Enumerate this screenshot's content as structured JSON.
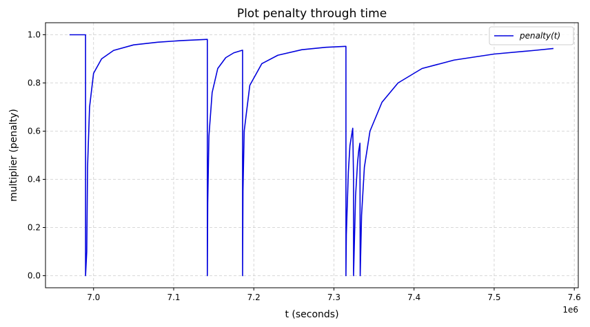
{
  "chart_data": {
    "type": "line",
    "title": "Plot penalty through time",
    "xlabel": "t (seconds)",
    "ylabel": "multiplier (penalty)",
    "x_offset_label": "1e6",
    "xlim": [
      6.94,
      7.605
    ],
    "ylim": [
      -0.05,
      1.05
    ],
    "x_ticks": [
      7.0,
      7.1,
      7.2,
      7.3,
      7.4,
      7.5,
      7.6
    ],
    "x_tick_labels": [
      "7.0",
      "7.1",
      "7.2",
      "7.3",
      "7.4",
      "7.5",
      "7.6"
    ],
    "y_ticks": [
      0.0,
      0.2,
      0.4,
      0.6,
      0.8,
      1.0
    ],
    "y_tick_labels": [
      "0.0",
      "0.2",
      "0.4",
      "0.6",
      "0.8",
      "1.0"
    ],
    "grid": true,
    "legend_position": "top-right",
    "series": [
      {
        "name": "penalty(t)",
        "color": "#0000dd",
        "x": [
          6.97,
          6.99,
          6.99,
          6.9915,
          6.9925,
          6.995,
          7.0,
          7.01,
          7.025,
          7.05,
          7.08,
          7.11,
          7.142,
          7.142,
          7.1425,
          7.144,
          7.148,
          7.155,
          7.165,
          7.175,
          7.186,
          7.186,
          7.1865,
          7.188,
          7.195,
          7.21,
          7.23,
          7.26,
          7.29,
          7.315,
          7.315,
          7.3155,
          7.318,
          7.32,
          7.3235,
          7.3245,
          7.3245,
          7.327,
          7.3295,
          7.331,
          7.3325,
          7.3328,
          7.3345,
          7.338,
          7.345,
          7.36,
          7.38,
          7.41,
          7.45,
          7.5,
          7.55,
          7.574
        ],
        "y": [
          1.0,
          1.0,
          0.0,
          0.1,
          0.45,
          0.7,
          0.84,
          0.9,
          0.935,
          0.958,
          0.969,
          0.976,
          0.981,
          0.0,
          0.3,
          0.58,
          0.76,
          0.86,
          0.905,
          0.925,
          0.936,
          0.0,
          0.35,
          0.6,
          0.79,
          0.88,
          0.915,
          0.938,
          0.948,
          0.952,
          0.0,
          0.17,
          0.43,
          0.54,
          0.612,
          0.4,
          0.0,
          0.33,
          0.47,
          0.52,
          0.55,
          0.0,
          0.25,
          0.45,
          0.6,
          0.72,
          0.8,
          0.86,
          0.895,
          0.92,
          0.935,
          0.943
        ]
      }
    ]
  }
}
